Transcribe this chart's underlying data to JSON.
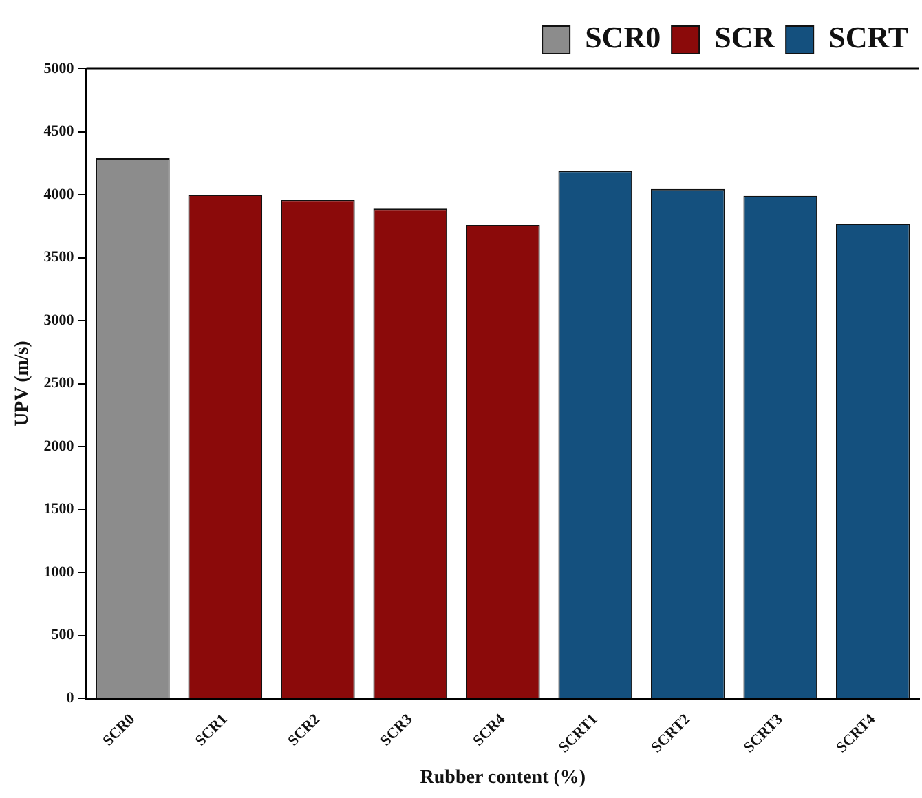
{
  "chart_data": {
    "type": "bar",
    "xlabel": "Rubber content (%)",
    "ylabel": "UPV (m/s)",
    "categories": [
      "SCR0",
      "SCR1",
      "SCR2",
      "SCR3",
      "SCR4",
      "SCRT1",
      "SCRT2",
      "SCRT3",
      "SCRT4"
    ],
    "series": [
      {
        "name": "SCR0",
        "color": "#8c8c8c",
        "values": [
          4290,
          null,
          null,
          null,
          null,
          null,
          null,
          null,
          null
        ]
      },
      {
        "name": "SCR",
        "color": "#8b0a0a",
        "values": [
          null,
          4000,
          3960,
          3890,
          3760,
          null,
          null,
          null,
          null
        ]
      },
      {
        "name": "SCRT",
        "color": "#14507e",
        "values": [
          null,
          null,
          null,
          null,
          null,
          4190,
          4045,
          3990,
          3770
        ]
      }
    ],
    "ylim": [
      0,
      5000
    ],
    "yticks": [
      0,
      500,
      1000,
      1500,
      2000,
      2500,
      3000,
      3500,
      4000,
      4500,
      5000
    ],
    "grid": false,
    "legend": "top right"
  }
}
